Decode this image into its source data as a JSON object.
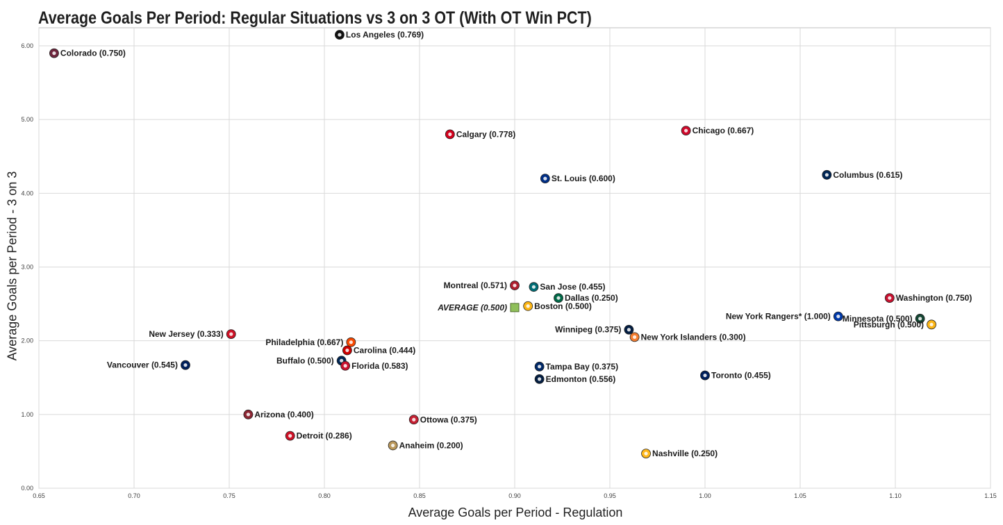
{
  "chart_data": {
    "type": "scatter",
    "title": "Average Goals Per Period: Regular Situations vs 3 on 3 OT (With OT Win PCT)",
    "xlabel": "Average Goals per Period - Regulation",
    "ylabel": "Average Goals per Period - 3 on 3",
    "xlim": [
      0.65,
      1.15
    ],
    "ylim": [
      0.0,
      6.0
    ],
    "xticks": [
      "0.65",
      "0.70",
      "0.75",
      "0.80",
      "0.85",
      "0.90",
      "0.95",
      "1.00",
      "1.05",
      "1.10",
      "1.15"
    ],
    "yticks": [
      "0.00",
      "1.00",
      "2.00",
      "3.00",
      "4.00",
      "5.00",
      "6.00"
    ],
    "grid": true,
    "points": [
      {
        "label": "Colorado (0.750)",
        "x": 0.658,
        "y": 5.9,
        "color": "#6f263d",
        "label_side": "right"
      },
      {
        "label": "Los Angeles (0.769)",
        "x": 0.808,
        "y": 6.15,
        "color": "#111111",
        "label_side": "right"
      },
      {
        "label": "Calgary (0.778)",
        "x": 0.866,
        "y": 4.8,
        "color": "#d2001c",
        "label_side": "right"
      },
      {
        "label": "Chicago (0.667)",
        "x": 0.99,
        "y": 4.85,
        "color": "#cf0a2c",
        "label_side": "right"
      },
      {
        "label": "St. Louis (0.600)",
        "x": 0.916,
        "y": 4.2,
        "color": "#002f87",
        "label_side": "right"
      },
      {
        "label": "Columbus (0.615)",
        "x": 1.064,
        "y": 4.25,
        "color": "#002654",
        "label_side": "right"
      },
      {
        "label": "Montreal (0.571)",
        "x": 0.9,
        "y": 2.75,
        "color": "#af1e2d",
        "label_side": "left"
      },
      {
        "label": "San Jose (0.455)",
        "x": 0.91,
        "y": 2.73,
        "color": "#006d75",
        "label_side": "right"
      },
      {
        "label": "Dallas (0.250)",
        "x": 0.923,
        "y": 2.58,
        "color": "#006847",
        "label_side": "right"
      },
      {
        "label": "AVERAGE (0.500)",
        "x": 0.9,
        "y": 2.45,
        "color": "#8fbf5a",
        "label_side": "left",
        "avg": true
      },
      {
        "label": "Boston (0.500)",
        "x": 0.907,
        "y": 2.47,
        "color": "#fcb514",
        "label_side": "right"
      },
      {
        "label": "New York Rangers* (1.000)",
        "x": 1.07,
        "y": 2.33,
        "color": "#0038a8",
        "label_side": "left"
      },
      {
        "label": "Washington (0.750)",
        "x": 1.097,
        "y": 2.58,
        "color": "#c8102e",
        "label_side": "right"
      },
      {
        "label": "Minnesota (0.500)",
        "x": 1.113,
        "y": 2.3,
        "color": "#154734",
        "label_side": "left"
      },
      {
        "label": "Pittsburgh (0.500)",
        "x": 1.119,
        "y": 2.22,
        "color": "#fcb514",
        "label_side": "left"
      },
      {
        "label": "Winnipeg (0.375)",
        "x": 0.96,
        "y": 2.15,
        "color": "#041e42",
        "label_side": "left"
      },
      {
        "label": "New York Islanders (0.300)",
        "x": 0.963,
        "y": 2.05,
        "color": "#f47d30",
        "label_side": "right"
      },
      {
        "label": "New Jersey (0.333)",
        "x": 0.751,
        "y": 2.09,
        "color": "#ce1126",
        "label_side": "left"
      },
      {
        "label": "Philadelphia (0.667)",
        "x": 0.814,
        "y": 1.98,
        "color": "#f74902",
        "label_side": "left"
      },
      {
        "label": "Carolina (0.444)",
        "x": 0.812,
        "y": 1.87,
        "color": "#cc0000",
        "label_side": "right"
      },
      {
        "label": "Buffalo (0.500)",
        "x": 0.809,
        "y": 1.73,
        "color": "#002654",
        "label_side": "left"
      },
      {
        "label": "Florida (0.583)",
        "x": 0.811,
        "y": 1.66,
        "color": "#c8102e",
        "label_side": "right"
      },
      {
        "label": "Vancouver (0.545)",
        "x": 0.727,
        "y": 1.67,
        "color": "#00205b",
        "label_side": "left"
      },
      {
        "label": "Tampa Bay (0.375)",
        "x": 0.913,
        "y": 1.65,
        "color": "#002868",
        "label_side": "right"
      },
      {
        "label": "Edmonton (0.556)",
        "x": 0.913,
        "y": 1.48,
        "color": "#041e42",
        "label_side": "right"
      },
      {
        "label": "Toronto (0.455)",
        "x": 1.0,
        "y": 1.53,
        "color": "#00205b",
        "label_side": "right"
      },
      {
        "label": "Arizona (0.400)",
        "x": 0.76,
        "y": 1.0,
        "color": "#8c2633",
        "label_side": "right"
      },
      {
        "label": "Ottowa (0.375)",
        "x": 0.847,
        "y": 0.93,
        "color": "#c52032",
        "label_side": "right"
      },
      {
        "label": "Detroit (0.286)",
        "x": 0.782,
        "y": 0.71,
        "color": "#ce1126",
        "label_side": "right"
      },
      {
        "label": "Anaheim (0.200)",
        "x": 0.836,
        "y": 0.58,
        "color": "#b9975b",
        "label_side": "right"
      },
      {
        "label": "Nashville (0.250)",
        "x": 0.969,
        "y": 0.47,
        "color": "#ffb81c",
        "label_side": "right"
      }
    ]
  }
}
